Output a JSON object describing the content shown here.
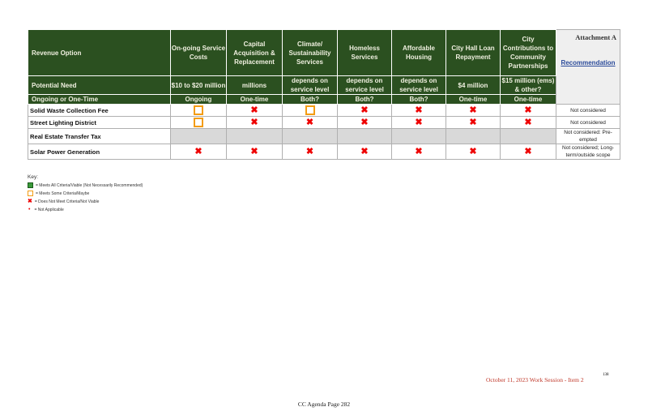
{
  "header": {
    "first": "Revenue Option",
    "columns": [
      "On-going Service Costs",
      "Capital Acquisition & Replacement",
      "Climate/ Sustainability Services",
      "Homeless Services",
      "Affordable Housing",
      "City Hall Loan Repayment",
      "City Contributions to Community Partnerships"
    ],
    "attachment": "Attachment A",
    "recommendation": "Recommendation"
  },
  "need": {
    "label": "Potential Need",
    "values": [
      "$10 to $20 million",
      "millions",
      "depends on service level",
      "depends on service level",
      "depends on service level",
      "$4 million",
      "$15 million (ems) & other?"
    ]
  },
  "timing": {
    "label": "Ongoing or One-Time",
    "values": [
      "Ongoing",
      "One-time",
      "Both?",
      "Both?",
      "Both?",
      "One-time",
      "One-time"
    ]
  },
  "rows": [
    {
      "name": "Solid Waste Collection Fee",
      "cells": [
        "maybe",
        "no",
        "maybe",
        "no",
        "no",
        "no",
        "no"
      ],
      "recommendation": "Not considered"
    },
    {
      "name": "Street Lighting District",
      "cells": [
        "maybe",
        "no",
        "no",
        "no",
        "no",
        "no",
        "no"
      ],
      "recommendation": "Not considered"
    },
    {
      "name": "Real Estate Transfer Tax",
      "cells": [
        "na",
        "na",
        "na",
        "na",
        "na",
        "na",
        "na"
      ],
      "recommendation": "Not considered: Pre-empted"
    },
    {
      "name": "Solar Power Generation",
      "cells": [
        "no",
        "no",
        "no",
        "no",
        "no",
        "no",
        "no"
      ],
      "recommendation": "Not considered; Long-term/outside scope"
    }
  ],
  "key": {
    "title": "Key:",
    "items": [
      "= Meets All Criteria/Viable (Not Necessarily Recommended)",
      "= Meets Some Criteria/Maybe",
      "= Does Not Meet Criteria/Not Viable",
      "= Not Applicable"
    ]
  },
  "footer": {
    "session": "October 11, 2023 Work Session - Item 2",
    "page_num": "138",
    "agenda": "CC Agenda Page 282"
  },
  "colors": {
    "header_green": "#2b5020",
    "maybe": "#f39c12",
    "no": "#e00000",
    "na_gray": "#d9d9d9"
  }
}
